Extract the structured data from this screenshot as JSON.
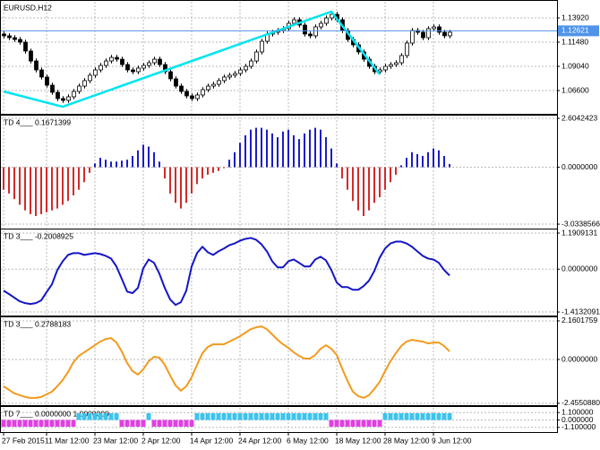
{
  "chart_data": [
    {
      "type": "candlestick",
      "title": "EURUSD,H12",
      "color_up": "#ffffff",
      "color_down": "#000000",
      "outline": "#000000",
      "open": [
        1.123,
        1.1212,
        1.1193,
        1.1175,
        1.1148,
        1.1058,
        1.0958,
        1.0868,
        1.0796,
        1.0714,
        1.0642,
        1.0579,
        1.0561,
        1.0597,
        1.0651,
        1.0705,
        1.076,
        1.0814,
        1.0868,
        1.0913,
        1.0958,
        1.0994,
        1.0976,
        1.0922,
        1.0868,
        1.085,
        1.0886,
        1.0913,
        1.094,
        1.0976,
        1.0922,
        1.085,
        1.0778,
        1.0705,
        1.0651,
        1.0606,
        1.0579,
        1.0615,
        1.0669,
        1.0705,
        1.0723,
        1.076,
        1.0796,
        1.0814,
        1.0832,
        1.0868,
        1.0904,
        1.0958,
        1.1049,
        1.1157,
        1.123,
        1.1248,
        1.1266,
        1.1284,
        1.1338,
        1.1374,
        1.132,
        1.123,
        1.1212,
        1.1302,
        1.1338,
        1.1392,
        1.1428,
        1.1374,
        1.1266,
        1.1175,
        1.1121,
        1.1049,
        1.0976,
        1.0904,
        1.085,
        1.0868,
        1.0904,
        1.0922,
        1.094,
        1.1013,
        1.1139,
        1.1266,
        1.1248,
        1.1193,
        1.1284,
        1.1302,
        1.1248,
        1.1212
      ],
      "high": [
        1.1255,
        1.1237,
        1.1218,
        1.12,
        1.1173,
        1.1083,
        1.0983,
        1.0893,
        1.0821,
        1.0739,
        1.0667,
        1.0604,
        1.0622,
        1.0676,
        1.073,
        1.0785,
        1.0839,
        1.0893,
        1.0938,
        1.0983,
        1.1019,
        1.1019,
        1.1001,
        1.0947,
        1.0893,
        1.0911,
        1.0938,
        1.0965,
        1.1001,
        1.1001,
        1.0947,
        1.0875,
        1.0803,
        1.073,
        1.0676,
        1.0631,
        1.064,
        1.0694,
        1.073,
        1.0748,
        1.0785,
        1.0821,
        1.0839,
        1.0857,
        1.0893,
        1.0929,
        1.0983,
        1.1074,
        1.1182,
        1.1255,
        1.1273,
        1.1291,
        1.1309,
        1.1363,
        1.1399,
        1.1399,
        1.1345,
        1.1255,
        1.1327,
        1.1363,
        1.1417,
        1.1453,
        1.1453,
        1.1399,
        1.1291,
        1.12,
        1.1146,
        1.1074,
        1.1001,
        1.0929,
        1.0893,
        1.0929,
        1.0947,
        1.0965,
        1.1038,
        1.1164,
        1.1291,
        1.1291,
        1.1273,
        1.1309,
        1.1327,
        1.1327,
        1.1273,
        1.1273
      ],
      "low": [
        1.1187,
        1.1168,
        1.115,
        1.1123,
        1.1033,
        1.0933,
        1.0843,
        1.0771,
        1.0689,
        1.0617,
        1.0554,
        1.0536,
        1.0536,
        1.0572,
        1.0626,
        1.068,
        1.0735,
        1.0789,
        1.0843,
        1.0888,
        1.0933,
        1.0951,
        1.0897,
        1.0843,
        1.0825,
        1.0825,
        1.0861,
        1.0888,
        1.0915,
        1.0897,
        1.0825,
        1.0753,
        1.068,
        1.0626,
        1.0581,
        1.0554,
        1.0554,
        1.059,
        1.0644,
        1.068,
        1.0698,
        1.0735,
        1.0771,
        1.0789,
        1.0807,
        1.0843,
        1.0879,
        1.0933,
        1.1024,
        1.1132,
        1.1205,
        1.1223,
        1.1241,
        1.1259,
        1.1313,
        1.1295,
        1.1205,
        1.1187,
        1.1187,
        1.1277,
        1.1313,
        1.1367,
        1.1349,
        1.1241,
        1.115,
        1.1096,
        1.1024,
        1.0951,
        1.0879,
        1.0825,
        1.0825,
        1.0843,
        1.0879,
        1.0897,
        1.0915,
        1.0988,
        1.1114,
        1.1223,
        1.1168,
        1.1168,
        1.1259,
        1.1223,
        1.1187,
        1.1187
      ],
      "close": [
        1.1212,
        1.1193,
        1.1175,
        1.1148,
        1.1058,
        1.0958,
        1.0868,
        1.0796,
        1.0714,
        1.0642,
        1.0579,
        1.0561,
        1.0597,
        1.0651,
        1.0705,
        1.076,
        1.0814,
        1.0868,
        1.0913,
        1.0958,
        1.0994,
        1.0976,
        1.0922,
        1.0868,
        1.085,
        1.0886,
        1.0913,
        1.094,
        1.0976,
        1.0922,
        1.085,
        1.0778,
        1.0705,
        1.0651,
        1.0606,
        1.0579,
        1.0615,
        1.0669,
        1.0705,
        1.0723,
        1.076,
        1.0796,
        1.0814,
        1.0832,
        1.0868,
        1.0904,
        1.0958,
        1.1049,
        1.1157,
        1.123,
        1.1248,
        1.1266,
        1.1284,
        1.1338,
        1.1374,
        1.132,
        1.123,
        1.1212,
        1.1302,
        1.1338,
        1.1392,
        1.1428,
        1.1374,
        1.1266,
        1.1175,
        1.1121,
        1.1049,
        1.0976,
        1.0904,
        1.085,
        1.0868,
        1.0904,
        1.0922,
        1.094,
        1.1013,
        1.1139,
        1.1266,
        1.1248,
        1.1193,
        1.1284,
        1.1302,
        1.1248,
        1.1212,
        1.1248
      ],
      "zigzag": {
        "color": "#00e5ee",
        "x": [
          0,
          11,
          61,
          70
        ],
        "values": [
          1.0651,
          1.0497,
          1.1456,
          1.0823
        ]
      },
      "last_price": 1.12621,
      "last_price_color": "#4f94e8",
      "ylim": [
        1.0425,
        1.1555
      ],
      "yticks": [
        {
          "value": 1.1392,
          "label": "1.13920"
        },
        {
          "value": 1.1148,
          "label": "1.11480"
        },
        {
          "value": 1.0904,
          "label": "1.09040"
        },
        {
          "value": 1.066,
          "label": "1.06600"
        }
      ],
      "grid": true
    },
    {
      "type": "bar",
      "title": "TD 4___ 0.1671399",
      "color_up": "#1c1cc8",
      "color_down": "#d42a2a",
      "values": [
        -1.2,
        -1.4,
        -1.7,
        -2.0,
        -2.3,
        -2.5,
        -2.6,
        -2.5,
        -2.4,
        -2.3,
        -2.2,
        -2.0,
        -1.8,
        -1.5,
        -1.2,
        -0.8,
        -0.3,
        0.2,
        0.5,
        0.4,
        0.3,
        0.3,
        0.35,
        0.4,
        0.6,
        0.9,
        1.2,
        1.1,
        0.8,
        0.3,
        -0.6,
        -1.4,
        -1.9,
        -2.2,
        -1.9,
        -1.4,
        -0.9,
        -0.6,
        -0.4,
        -0.3,
        -0.2,
        -0.05,
        0.4,
        0.8,
        1.3,
        1.7,
        2.0,
        2.1,
        2.1,
        2.0,
        1.8,
        1.6,
        1.9,
        2.0,
        1.7,
        1.5,
        1.8,
        2.0,
        2.1,
        2.0,
        1.6,
        1.0,
        0.2,
        -0.6,
        -1.2,
        -1.8,
        -2.3,
        -2.6,
        -2.3,
        -1.9,
        -1.6,
        -1.2,
        -0.8,
        -0.4,
        0.1,
        0.5,
        0.8,
        0.7,
        0.6,
        0.8,
        1.0,
        0.9,
        0.6,
        0.17
      ],
      "ylim": [
        -3.27,
        2.7
      ],
      "yticks": [
        2.6042423,
        {
          "value": 0,
          "label": "0.0000000"
        },
        -3.0338566
      ],
      "grid": true
    },
    {
      "type": "line",
      "title": "TD 3___ -0.2008925",
      "color": "#1515c8",
      "values": [
        -0.71,
        -0.82,
        -0.94,
        -1.06,
        -1.12,
        -1.15,
        -1.12,
        -1.03,
        -0.76,
        -0.5,
        -0.03,
        0.26,
        0.47,
        0.53,
        0.53,
        0.47,
        0.5,
        0.53,
        0.5,
        0.44,
        0.35,
        0.09,
        -0.32,
        -0.74,
        -0.79,
        -0.62,
        0.03,
        0.32,
        0.21,
        -0.15,
        -0.62,
        -1.0,
        -1.18,
        -1.09,
        -0.71,
        0.09,
        0.53,
        0.74,
        0.56,
        0.47,
        0.59,
        0.68,
        0.79,
        0.85,
        0.94,
        1.0,
        1.03,
        0.97,
        0.82,
        0.59,
        0.26,
        0.06,
        0.06,
        0.26,
        0.32,
        0.21,
        0.09,
        0.09,
        0.32,
        0.41,
        0.29,
        -0.03,
        -0.44,
        -0.59,
        -0.59,
        -0.68,
        -0.68,
        -0.56,
        -0.38,
        -0.06,
        0.38,
        0.68,
        0.85,
        0.91,
        0.91,
        0.85,
        0.74,
        0.59,
        0.44,
        0.35,
        0.32,
        0.21,
        -0.03,
        -0.21
      ],
      "ylim": [
        -1.53,
        1.28
      ],
      "yticks": [
        1.1909131,
        {
          "value": 0,
          "label": "0.0000000"
        },
        -1.4132091
      ],
      "grid": true
    },
    {
      "type": "line",
      "title": "TD 3___ 0.2788183",
      "color": "#f39a1e",
      "values": [
        -1.5,
        -1.7,
        -1.9,
        -2.0,
        -2.1,
        -2.15,
        -2.15,
        -2.1,
        -1.95,
        -1.8,
        -1.5,
        -1.15,
        -0.7,
        -0.15,
        0.2,
        0.4,
        0.6,
        0.8,
        1.0,
        1.15,
        1.2,
        0.95,
        0.45,
        -0.2,
        -0.65,
        -0.85,
        -0.55,
        -0.1,
        0.15,
        0.1,
        -0.3,
        -0.9,
        -1.45,
        -1.75,
        -1.5,
        -1.0,
        -0.3,
        0.35,
        0.7,
        0.85,
        0.85,
        0.85,
        1.0,
        1.15,
        1.3,
        1.5,
        1.7,
        1.8,
        1.85,
        1.7,
        1.4,
        1.1,
        0.85,
        0.65,
        0.4,
        0.2,
        0.05,
        0.05,
        0.25,
        0.6,
        0.8,
        0.6,
        0.25,
        -0.5,
        -1.2,
        -1.8,
        -2.05,
        -2.15,
        -2.0,
        -1.65,
        -1.25,
        -0.65,
        -0.1,
        0.35,
        0.75,
        1.0,
        1.1,
        1.05,
        1.0,
        0.9,
        0.95,
        0.95,
        0.75,
        0.45
      ],
      "ylim": [
        -2.56,
        2.31
      ],
      "yticks": [
        2.1601759,
        {
          "value": 0,
          "label": "0.0000000"
        },
        {
          "value": -2.455088,
          "label": "-2.4550880"
        }
      ],
      "grid": true
    },
    {
      "type": "bar",
      "title": "TD 7___ 0.0000000 1.0000000",
      "color_up": "#3cc4ec",
      "color_down": "#e040e0",
      "values": [
        -1,
        -1,
        -1,
        -1,
        -1,
        -1,
        -1,
        -1,
        -1,
        -1,
        -1,
        -1,
        -1,
        -1,
        1,
        1,
        1,
        1,
        1,
        1,
        1,
        1,
        -1,
        -1,
        -1,
        -1,
        -1,
        1,
        -1,
        -1,
        -1,
        -1,
        -1,
        -1,
        -1,
        -1,
        1,
        1,
        1,
        1,
        1,
        1,
        1,
        1,
        1,
        1,
        1,
        1,
        1,
        1,
        1,
        1,
        1,
        1,
        1,
        1,
        1,
        1,
        1,
        1,
        1,
        -1,
        -1,
        -1,
        -1,
        -1,
        -1,
        -1,
        -1,
        -1,
        -1,
        1,
        1,
        1,
        1,
        1,
        1,
        1,
        1,
        1,
        1,
        1,
        1,
        1
      ],
      "categories": [
        "27 Feb 2015",
        null,
        null,
        null,
        null,
        null,
        null,
        null,
        "11 Mar 12:00",
        null,
        null,
        null,
        null,
        null,
        null,
        null,
        null,
        "23 Mar 12:00",
        null,
        null,
        null,
        null,
        null,
        null,
        null,
        null,
        "2 Apr 12:00",
        null,
        null,
        null,
        null,
        null,
        null,
        null,
        null,
        "14 Apr 12:00",
        null,
        null,
        null,
        null,
        null,
        null,
        null,
        null,
        "24 Apr 12:00",
        null,
        null,
        null,
        null,
        null,
        null,
        null,
        null,
        "6 May 12:00",
        null,
        null,
        null,
        null,
        null,
        null,
        null,
        null,
        "18 May 12:00",
        null,
        null,
        null,
        null,
        null,
        null,
        null,
        null,
        "28 May 12:00",
        null,
        null,
        null,
        null,
        null,
        null,
        null,
        null,
        "9 Jun 12:00",
        null,
        null,
        null
      ],
      "ylim": [
        -1.79,
        1.79
      ],
      "yticks": [
        {
          "value": 1.1,
          "label": "1.100000"
        },
        {
          "value": 0,
          "label": "0.000000"
        },
        {
          "value": -1.1,
          "label": "-1.100000"
        }
      ],
      "grid": true
    }
  ]
}
